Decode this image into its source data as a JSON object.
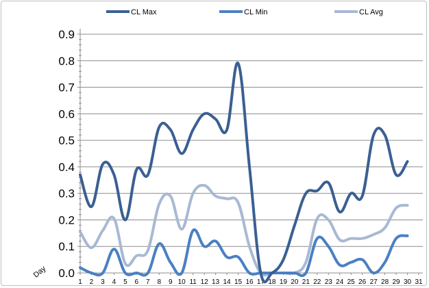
{
  "chart_data": {
    "type": "line",
    "title": "",
    "xlabel": "Day",
    "ylabel": "",
    "ylim": [
      0,
      0.9
    ],
    "xlim": [
      1,
      31
    ],
    "y_ticks": [
      0.0,
      0.1,
      0.2,
      0.3,
      0.4,
      0.5,
      0.6,
      0.7,
      0.8,
      0.9
    ],
    "y_tick_labels": [
      "0.0",
      "0.1",
      "0.2",
      "0.3",
      "0.4",
      "0.5",
      "0.6",
      "0.7",
      "0.8",
      "0.9"
    ],
    "x_ticks": [
      "1",
      "2",
      "3",
      "4",
      "5",
      "6",
      "7",
      "8",
      "9",
      "10",
      "11",
      "12",
      "13",
      "14",
      "15",
      "16",
      "17",
      "18",
      "19",
      "20",
      "21",
      "22",
      "23",
      "24",
      "25",
      "26",
      "27",
      "28",
      "29",
      "30",
      "31"
    ],
    "grid": "horizontal",
    "legend_position": "top",
    "x": [
      1,
      2,
      3,
      4,
      5,
      6,
      7,
      8,
      9,
      10,
      11,
      12,
      13,
      14,
      15,
      16,
      17,
      18,
      19,
      20,
      21,
      22,
      23,
      24,
      25,
      26,
      27,
      28,
      29,
      30
    ],
    "series": [
      {
        "name": "CL Max",
        "color": "#3b5f93",
        "values": [
          0.37,
          0.25,
          0.41,
          0.37,
          0.2,
          0.39,
          0.37,
          0.55,
          0.54,
          0.45,
          0.54,
          0.6,
          0.58,
          0.54,
          0.79,
          0.4,
          0.0,
          0.0,
          0.05,
          0.18,
          0.3,
          0.31,
          0.34,
          0.23,
          0.3,
          0.29,
          0.52,
          0.52,
          0.37,
          0.42
        ]
      },
      {
        "name": "CL Min",
        "color": "#4a80c2",
        "values": [
          0.02,
          0.0,
          0.0,
          0.09,
          0.0,
          0.0,
          0.0,
          0.11,
          0.04,
          0.0,
          0.16,
          0.1,
          0.12,
          0.06,
          0.06,
          0.0,
          0.0,
          0.0,
          0.0,
          0.0,
          0.0,
          0.13,
          0.1,
          0.03,
          0.04,
          0.05,
          0.0,
          0.04,
          0.13,
          0.14
        ]
      },
      {
        "name": "CL Avg",
        "color": "#a8b9d4",
        "values": [
          0.155,
          0.095,
          0.16,
          0.205,
          0.035,
          0.065,
          0.085,
          0.26,
          0.29,
          0.165,
          0.3,
          0.33,
          0.29,
          0.28,
          0.265,
          0.1,
          0.0,
          0.0,
          0.0,
          0.0,
          0.04,
          0.205,
          0.2,
          0.125,
          0.13,
          0.13,
          0.145,
          0.17,
          0.245,
          0.255
        ]
      }
    ]
  }
}
